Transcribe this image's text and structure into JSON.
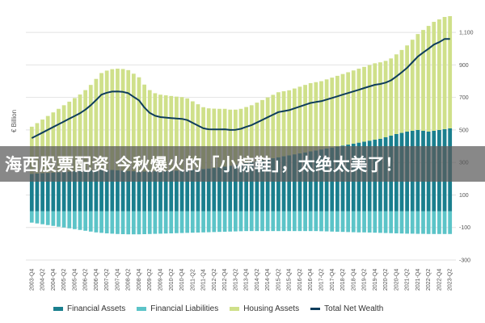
{
  "banner": {
    "text": "海西股票配资 今秋爆火的「小棕鞋」，太绝太美了！"
  },
  "chart_data": {
    "type": "bar",
    "ylabel": "€ Billion",
    "ylim": [
      -300,
      1200
    ],
    "yticks": [
      1100,
      900,
      700,
      500,
      300,
      100,
      -100,
      -300
    ],
    "grid": true,
    "legend_position": "bottom",
    "colors": {
      "Financial Assets": "#1a7f8e",
      "Financial Liabilities": "#5cc4c8",
      "Housing Assets": "#cfe08a",
      "Total Net Wealth": "#0e3d5c"
    },
    "categories": [
      "2003-Q4",
      "2004-Q1",
      "2004-Q2",
      "2004-Q3",
      "2004-Q4",
      "2005-Q1",
      "2005-Q2",
      "2005-Q3",
      "2005-Q4",
      "2006-Q1",
      "2006-Q2",
      "2006-Q3",
      "2006-Q4",
      "2007-Q1",
      "2007-Q2",
      "2007-Q3",
      "2007-Q4",
      "2008-Q1",
      "2008-Q2",
      "2008-Q3",
      "2008-Q4",
      "2009-Q1",
      "2009-Q2",
      "2009-Q3",
      "2009-Q4",
      "2010-Q1",
      "2010-Q2",
      "2010-Q3",
      "2010-Q4",
      "2011-Q1",
      "2011-Q2",
      "2011-Q3",
      "2011-Q4",
      "2012-Q1",
      "2012-Q2",
      "2012-Q3",
      "2012-Q4",
      "2013-Q1",
      "2013-Q2",
      "2013-Q3",
      "2013-Q4",
      "2014-Q1",
      "2014-Q2",
      "2014-Q3",
      "2014-Q4",
      "2015-Q1",
      "2015-Q2",
      "2015-Q3",
      "2015-Q4",
      "2016-Q1",
      "2016-Q2",
      "2016-Q3",
      "2016-Q4",
      "2017-Q1",
      "2017-Q2",
      "2017-Q3",
      "2017-Q4",
      "2018-Q1",
      "2018-Q2",
      "2018-Q3",
      "2018-Q4",
      "2019-Q1",
      "2019-Q2",
      "2019-Q3",
      "2019-Q4",
      "2020-Q1",
      "2020-Q2",
      "2020-Q3",
      "2020-Q4",
      "2021-Q1",
      "2021-Q2",
      "2021-Q3",
      "2021-Q4",
      "2022-Q1",
      "2022-Q2",
      "2022-Q3",
      "2022-Q4",
      "2023-Q1",
      "2023-Q2"
    ],
    "xtick_labels": [
      "2003-Q4",
      "2004-Q2",
      "2004-Q4",
      "2005-Q2",
      "2005-Q4",
      "2006-Q2",
      "2006-Q4",
      "2007-Q2",
      "2007-Q4",
      "2008-Q2",
      "2008-Q4",
      "2009-Q2",
      "2009-Q4",
      "2010-Q2",
      "2010-Q4",
      "2011-Q2",
      "2011-Q4",
      "2012-Q2",
      "2012-Q4",
      "2013-Q2",
      "2013-Q4",
      "2014-Q2",
      "2014-Q4",
      "2015-Q2",
      "2015-Q4",
      "2016-Q2",
      "2016-Q4",
      "2017-Q2",
      "2017-Q4",
      "2018-Q2",
      "2018-Q4",
      "2019-Q2",
      "2019-Q4",
      "2020-Q2",
      "2020-Q4",
      "2021-Q2",
      "2021-Q4",
      "2022-Q2",
      "2022-Q4",
      "2023-Q2"
    ],
    "series": [
      {
        "name": "Financial Assets",
        "values": [
          230,
          232,
          234,
          236,
          238,
          240,
          242,
          244,
          246,
          248,
          250,
          252,
          254,
          255,
          255,
          254,
          252,
          250,
          248,
          246,
          244,
          244,
          245,
          246,
          247,
          248,
          249,
          250,
          252,
          254,
          256,
          258,
          260,
          263,
          266,
          270,
          275,
          280,
          285,
          290,
          296,
          302,
          308,
          314,
          320,
          326,
          332,
          338,
          344,
          350,
          356,
          362,
          368,
          374,
          380,
          386,
          392,
          398,
          404,
          410,
          416,
          422,
          428,
          434,
          440,
          446,
          455,
          465,
          475,
          482,
          490,
          495,
          500,
          495,
          490,
          495,
          500,
          505,
          510
        ]
      },
      {
        "name": "Financial Liabilities",
        "values": [
          -70,
          -75,
          -80,
          -85,
          -90,
          -95,
          -100,
          -105,
          -110,
          -115,
          -120,
          -125,
          -130,
          -133,
          -136,
          -138,
          -140,
          -141,
          -142,
          -142,
          -142,
          -141,
          -140,
          -139,
          -138,
          -137,
          -136,
          -135,
          -134,
          -133,
          -132,
          -131,
          -130,
          -129,
          -128,
          -127,
          -126,
          -125,
          -124,
          -123,
          -122,
          -122,
          -122,
          -122,
          -122,
          -122,
          -122,
          -122,
          -122,
          -122,
          -122,
          -122,
          -122,
          -122,
          -123,
          -124,
          -125,
          -126,
          -127,
          -128,
          -129,
          -130,
          -130,
          -131,
          -132,
          -133,
          -134,
          -135,
          -136,
          -137,
          -138,
          -138,
          -139,
          -139,
          -140,
          -140,
          -140,
          -140,
          -140
        ]
      },
      {
        "name": "Housing Assets",
        "values": [
          290,
          310,
          330,
          350,
          370,
          390,
          410,
          430,
          450,
          470,
          495,
          525,
          560,
          595,
          610,
          620,
          625,
          625,
          620,
          600,
          580,
          535,
          500,
          480,
          470,
          465,
          460,
          455,
          450,
          440,
          420,
          400,
          380,
          370,
          365,
          360,
          355,
          345,
          340,
          340,
          345,
          350,
          360,
          370,
          380,
          390,
          400,
          400,
          400,
          405,
          410,
          415,
          420,
          420,
          420,
          425,
          430,
          435,
          440,
          445,
          450,
          455,
          460,
          465,
          470,
          470,
          470,
          475,
          490,
          510,
          530,
          560,
          590,
          620,
          650,
          670,
          680,
          690,
          690
        ]
      },
      {
        "name": "Total Net Wealth",
        "values": [
          450,
          467,
          484,
          501,
          518,
          535,
          552,
          569,
          586,
          603,
          625,
          652,
          684,
          717,
          729,
          736,
          737,
          734,
          726,
          704,
          682,
          638,
          605,
          587,
          579,
          576,
          573,
          570,
          568,
          561,
          544,
          527,
          510,
          504,
          503,
          503,
          504,
          500,
          501,
          507,
          519,
          530,
          546,
          562,
          578,
          594,
          610,
          616,
          622,
          633,
          644,
          655,
          666,
          672,
          677,
          687,
          697,
          707,
          717,
          727,
          737,
          747,
          758,
          768,
          778,
          783,
          791,
          805,
          829,
          855,
          882,
          917,
          951,
          976,
          1000,
          1025,
          1040,
          1060,
          1060
        ]
      }
    ]
  }
}
